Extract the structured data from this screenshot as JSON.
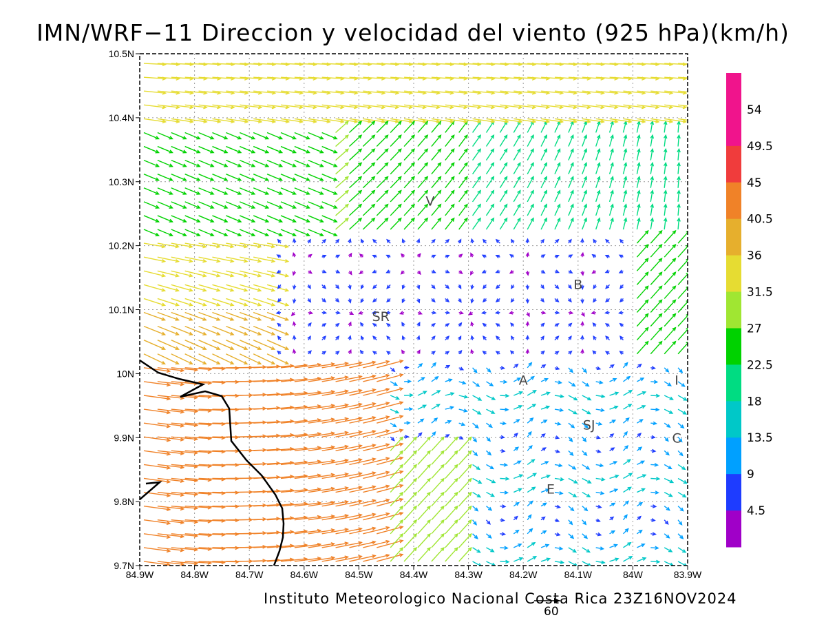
{
  "title": "IMN/WRF−11 Direccion y velocidad del viento (925 hPa)(km/h)",
  "footer": "Instituto Meteorologico Nacional Costa Rica 23Z16NOV2024",
  "reference_vector": "60",
  "map": {
    "lon_range": [
      -84.9,
      -83.9
    ],
    "lat_range": [
      9.7,
      10.5
    ],
    "x_ticks": [
      "84.9W",
      "84.8W",
      "84.7W",
      "84.6W",
      "84.5W",
      "84.4W",
      "84.3W",
      "84.2W",
      "84.1W",
      "84W",
      "83.9W"
    ],
    "y_ticks": [
      "9.7N",
      "9.8N",
      "9.9N",
      "10N",
      "10.1N",
      "10.2N",
      "10.3N",
      "10.4N",
      "10.5N"
    ],
    "grid": "dotted"
  },
  "cities": [
    {
      "label": "V",
      "lon": -84.37,
      "lat": 10.27
    },
    {
      "label": "B",
      "lon": -84.1,
      "lat": 10.14
    },
    {
      "label": "SR",
      "lon": -84.46,
      "lat": 10.09
    },
    {
      "label": "A",
      "lon": -84.2,
      "lat": 9.99
    },
    {
      "label": "I",
      "lon": -83.92,
      "lat": 9.99
    },
    {
      "label": "SJ",
      "lon": -84.08,
      "lat": 9.92
    },
    {
      "label": "C",
      "lon": -83.92,
      "lat": 9.9
    },
    {
      "label": "E",
      "lon": -84.15,
      "lat": 9.82
    }
  ],
  "legend": {
    "labels": [
      "54",
      "49.5",
      "45",
      "40.5",
      "36",
      "31.5",
      "27",
      "22.5",
      "18",
      "13.5",
      "9",
      "4.5"
    ],
    "colors": [
      "#f0148c",
      "#f03c3c",
      "#f08228",
      "#e6af2d",
      "#e6dc32",
      "#a0e632",
      "#00d200",
      "#00dc82",
      "#00c8c8",
      "#00a0ff",
      "#1e3cff",
      "#a000c8"
    ]
  }
}
